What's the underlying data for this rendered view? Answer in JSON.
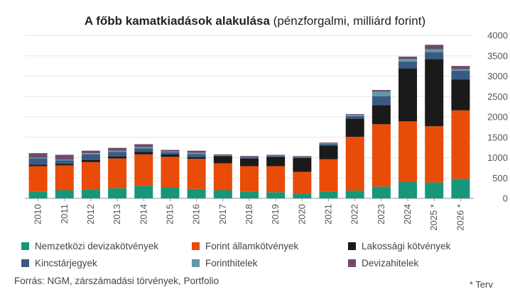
{
  "title": {
    "bold": "A főbb kamatkiadások alakulása",
    "rest": " (pénzforgalmi, milliárd forint)"
  },
  "source": "Forrás: NGM, zárszámadási törvények, Portfolio",
  "note": "* Terv",
  "colors": {
    "s0": "#17967a",
    "s1": "#e84c08",
    "s2": "#1a1a1a",
    "s3": "#3a5a86",
    "s4": "#5f9aa6",
    "s5": "#6e4a6c",
    "grid": "#e6e6e6",
    "axis": "#999999"
  },
  "chart_data": {
    "type": "bar",
    "stacked": true,
    "title": "A főbb kamatkiadások alakulása (pénzforgalmi, milliárd forint)",
    "categories": [
      "2010",
      "2011",
      "2012",
      "2013",
      "2014",
      "2015",
      "2016",
      "2017",
      "2018",
      "2019",
      "2020",
      "2021",
      "2022",
      "2023",
      "2024",
      "2025 *",
      "2026 *"
    ],
    "ylim": [
      0,
      4000
    ],
    "yticks": [
      0,
      500,
      1000,
      1500,
      2000,
      2500,
      3000,
      3500,
      4000
    ],
    "y_axis_side": "right",
    "grid": true,
    "legend_position": "bottom",
    "series": [
      {
        "name": "Nemzetközi devizakötvények",
        "values": [
          170,
          200,
          210,
          250,
          310,
          270,
          230,
          200,
          170,
          150,
          120,
          170,
          190,
          290,
          400,
          390,
          480
        ]
      },
      {
        "name": "Forint államkötvények",
        "values": [
          620,
          610,
          680,
          730,
          770,
          750,
          740,
          660,
          620,
          640,
          530,
          790,
          1320,
          1530,
          1490,
          1380,
          1680
        ]
      },
      {
        "name": "Lakossági kötvények",
        "values": [
          40,
          40,
          50,
          50,
          60,
          60,
          40,
          180,
          190,
          230,
          340,
          340,
          450,
          470,
          1300,
          1650,
          760
        ]
      },
      {
        "name": "Kincstárjegyek",
        "values": [
          150,
          80,
          140,
          110,
          90,
          50,
          80,
          10,
          20,
          20,
          20,
          30,
          60,
          220,
          170,
          170,
          210
        ]
      },
      {
        "name": "Forinthitelek",
        "values": [
          20,
          20,
          30,
          30,
          30,
          20,
          30,
          10,
          10,
          10,
          10,
          20,
          30,
          110,
          60,
          70,
          40
        ]
      },
      {
        "name": "Devizahitelek",
        "values": [
          110,
          120,
          60,
          70,
          70,
          40,
          50,
          20,
          30,
          20,
          20,
          20,
          20,
          40,
          60,
          110,
          80
        ]
      }
    ]
  }
}
